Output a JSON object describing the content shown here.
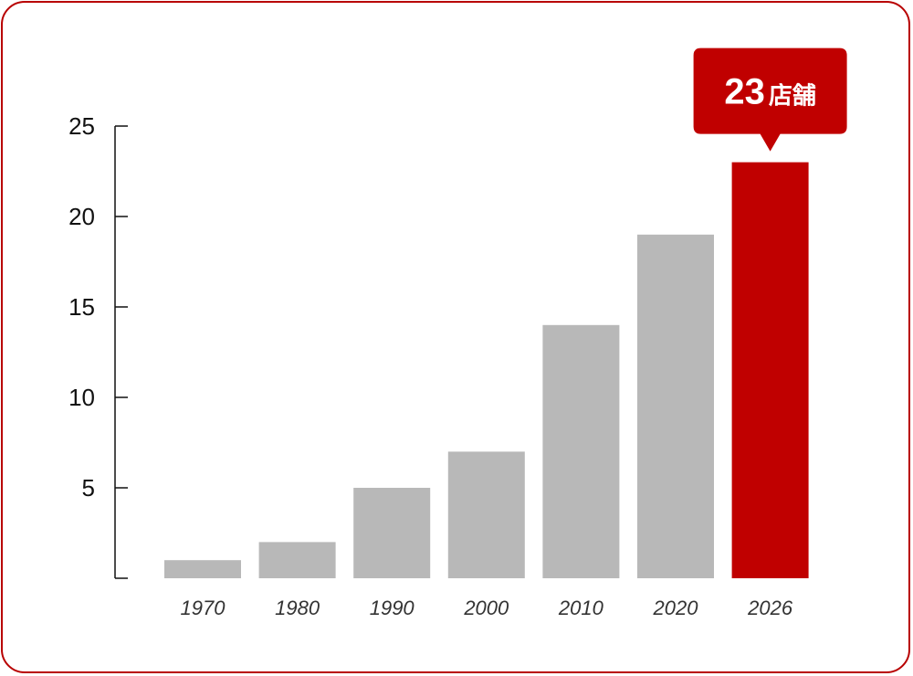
{
  "chart_data": {
    "type": "bar",
    "categories": [
      "1970",
      "1980",
      "1990",
      "2000",
      "2010",
      "2020",
      "2026"
    ],
    "values": [
      1,
      2,
      5,
      7,
      14,
      19,
      23
    ],
    "ylim": [
      0,
      25
    ],
    "yticks": [
      5,
      10,
      15,
      20,
      25
    ],
    "grid": false,
    "highlight_index": 6,
    "callout": {
      "value": "23",
      "unit": "店舗"
    }
  },
  "colors": {
    "frame": "#b80000",
    "bar": "#b8b8b8",
    "highlight": "#c00000",
    "axis": "#111111"
  }
}
